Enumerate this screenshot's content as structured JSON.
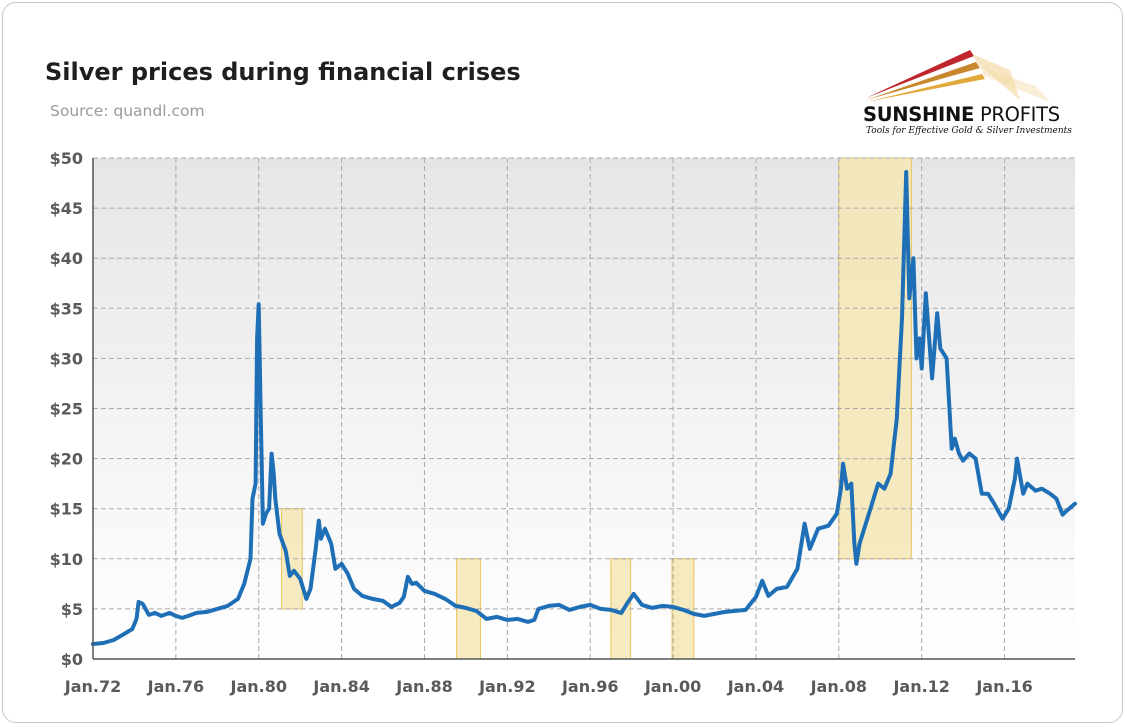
{
  "title": "Silver prices during financial crises",
  "subtitle": "Source: quandl.com",
  "logo": {
    "name_part1": "SUNSHINE",
    "name_part2": "PROFITS",
    "tagline": "Tools for Effective Gold & Silver Investments"
  },
  "colors": {
    "line": "#1f6fb7",
    "crisis_fill": "#f5e7b5",
    "crisis_border": "#e9c45c",
    "grid": "#aaaaaa"
  },
  "chart_data": {
    "type": "line",
    "title": "Silver prices during financial crises",
    "xlabel": "",
    "ylabel": "",
    "ylim": [
      0,
      50
    ],
    "xlim": [
      1972.0,
      2019.4
    ],
    "grid": true,
    "yticks": [
      {
        "value": 0,
        "label": "$0"
      },
      {
        "value": 5,
        "label": "$5"
      },
      {
        "value": 10,
        "label": "$10"
      },
      {
        "value": 15,
        "label": "$15"
      },
      {
        "value": 20,
        "label": "$20"
      },
      {
        "value": 25,
        "label": "$25"
      },
      {
        "value": 30,
        "label": "$30"
      },
      {
        "value": 35,
        "label": "$35"
      },
      {
        "value": 40,
        "label": "$40"
      },
      {
        "value": 45,
        "label": "$45"
      },
      {
        "value": 50,
        "label": "$50"
      }
    ],
    "xticks": [
      {
        "value": 1972,
        "label": "Jan.72"
      },
      {
        "value": 1976,
        "label": "Jan.76"
      },
      {
        "value": 1980,
        "label": "Jan.80"
      },
      {
        "value": 1984,
        "label": "Jan.84"
      },
      {
        "value": 1988,
        "label": "Jan.88"
      },
      {
        "value": 1992,
        "label": "Jan.92"
      },
      {
        "value": 1996,
        "label": "Jan.96"
      },
      {
        "value": 2000,
        "label": "Jan.00"
      },
      {
        "value": 2004,
        "label": "Jan.04"
      },
      {
        "value": 2008,
        "label": "Jan.08"
      },
      {
        "value": 2012,
        "label": "Jan.12"
      },
      {
        "value": 2016,
        "label": "Jan.16"
      }
    ],
    "crisis_periods": [
      {
        "start": 1981.1,
        "end": 1982.1,
        "low": 5,
        "high": 15
      },
      {
        "start": 1989.55,
        "end": 1990.7,
        "low": 0,
        "high": 10
      },
      {
        "start": 1997.0,
        "end": 1997.95,
        "low": 0,
        "high": 10
      },
      {
        "start": 1999.95,
        "end": 2001.0,
        "low": 0,
        "high": 10
      },
      {
        "start": 2008.0,
        "end": 2011.5,
        "low": 10,
        "high": 50
      }
    ],
    "series": [
      {
        "values": [
          [
            1972.0,
            1.5
          ],
          [
            1972.5,
            1.6
          ],
          [
            1973.0,
            1.9
          ],
          [
            1973.5,
            2.5
          ],
          [
            1973.9,
            3.0
          ],
          [
            1974.1,
            4.0
          ],
          [
            1974.2,
            5.7
          ],
          [
            1974.4,
            5.5
          ],
          [
            1974.7,
            4.4
          ],
          [
            1975.0,
            4.6
          ],
          [
            1975.3,
            4.3
          ],
          [
            1975.7,
            4.6
          ],
          [
            1976.0,
            4.3
          ],
          [
            1976.3,
            4.1
          ],
          [
            1976.6,
            4.3
          ],
          [
            1977.0,
            4.6
          ],
          [
            1977.5,
            4.7
          ],
          [
            1978.0,
            5.0
          ],
          [
            1978.5,
            5.3
          ],
          [
            1979.0,
            6.0
          ],
          [
            1979.3,
            7.5
          ],
          [
            1979.6,
            10.0
          ],
          [
            1979.7,
            16.0
          ],
          [
            1979.85,
            17.5
          ],
          [
            1979.92,
            32.0
          ],
          [
            1980.0,
            35.4
          ],
          [
            1980.1,
            24.0
          ],
          [
            1980.2,
            13.5
          ],
          [
            1980.35,
            14.5
          ],
          [
            1980.5,
            15.0
          ],
          [
            1980.62,
            20.5
          ],
          [
            1980.72,
            18.5
          ],
          [
            1980.8,
            16.0
          ],
          [
            1981.0,
            12.5
          ],
          [
            1981.3,
            10.8
          ],
          [
            1981.5,
            8.3
          ],
          [
            1981.7,
            8.8
          ],
          [
            1982.0,
            8.0
          ],
          [
            1982.3,
            6.0
          ],
          [
            1982.5,
            7.0
          ],
          [
            1982.75,
            11.0
          ],
          [
            1982.9,
            13.8
          ],
          [
            1983.0,
            12.0
          ],
          [
            1983.2,
            13.0
          ],
          [
            1983.5,
            11.5
          ],
          [
            1983.7,
            9.0
          ],
          [
            1984.0,
            9.5
          ],
          [
            1984.3,
            8.5
          ],
          [
            1984.6,
            7.0
          ],
          [
            1985.0,
            6.3
          ],
          [
            1985.5,
            6.0
          ],
          [
            1986.0,
            5.8
          ],
          [
            1986.4,
            5.2
          ],
          [
            1986.8,
            5.6
          ],
          [
            1987.0,
            6.2
          ],
          [
            1987.2,
            8.2
          ],
          [
            1987.4,
            7.5
          ],
          [
            1987.6,
            7.6
          ],
          [
            1988.0,
            6.8
          ],
          [
            1988.5,
            6.5
          ],
          [
            1989.0,
            6.0
          ],
          [
            1989.5,
            5.3
          ],
          [
            1990.0,
            5.1
          ],
          [
            1990.5,
            4.8
          ],
          [
            1991.0,
            4.0
          ],
          [
            1991.5,
            4.2
          ],
          [
            1992.0,
            3.9
          ],
          [
            1992.5,
            4.0
          ],
          [
            1993.0,
            3.7
          ],
          [
            1993.3,
            3.9
          ],
          [
            1993.5,
            5.0
          ],
          [
            1994.0,
            5.3
          ],
          [
            1994.5,
            5.4
          ],
          [
            1995.0,
            4.9
          ],
          [
            1995.5,
            5.2
          ],
          [
            1996.0,
            5.4
          ],
          [
            1996.5,
            5.0
          ],
          [
            1997.0,
            4.9
          ],
          [
            1997.5,
            4.6
          ],
          [
            1997.8,
            5.6
          ],
          [
            1998.1,
            6.5
          ],
          [
            1998.5,
            5.4
          ],
          [
            1999.0,
            5.1
          ],
          [
            1999.5,
            5.3
          ],
          [
            2000.0,
            5.2
          ],
          [
            2000.5,
            4.9
          ],
          [
            2001.0,
            4.5
          ],
          [
            2001.5,
            4.3
          ],
          [
            2002.0,
            4.5
          ],
          [
            2002.5,
            4.7
          ],
          [
            2003.0,
            4.8
          ],
          [
            2003.5,
            4.9
          ],
          [
            2004.0,
            6.2
          ],
          [
            2004.3,
            7.8
          ],
          [
            2004.6,
            6.3
          ],
          [
            2005.0,
            7.0
          ],
          [
            2005.5,
            7.2
          ],
          [
            2006.0,
            9.0
          ],
          [
            2006.35,
            13.5
          ],
          [
            2006.6,
            11.0
          ],
          [
            2007.0,
            13.0
          ],
          [
            2007.5,
            13.3
          ],
          [
            2007.9,
            14.5
          ],
          [
            2008.1,
            17.0
          ],
          [
            2008.2,
            19.5
          ],
          [
            2008.4,
            17.0
          ],
          [
            2008.6,
            17.5
          ],
          [
            2008.75,
            11.5
          ],
          [
            2008.85,
            9.5
          ],
          [
            2009.0,
            11.5
          ],
          [
            2009.3,
            13.5
          ],
          [
            2009.6,
            15.5
          ],
          [
            2009.9,
            17.5
          ],
          [
            2010.2,
            17.0
          ],
          [
            2010.5,
            18.5
          ],
          [
            2010.8,
            24.0
          ],
          [
            2010.95,
            30.0
          ],
          [
            2011.05,
            34.0
          ],
          [
            2011.25,
            48.6
          ],
          [
            2011.4,
            36.0
          ],
          [
            2011.6,
            40.0
          ],
          [
            2011.75,
            30.0
          ],
          [
            2011.9,
            32.0
          ],
          [
            2012.0,
            29.0
          ],
          [
            2012.2,
            36.5
          ],
          [
            2012.5,
            28.0
          ],
          [
            2012.75,
            34.5
          ],
          [
            2012.9,
            31.0
          ],
          [
            2013.2,
            30.0
          ],
          [
            2013.45,
            21.0
          ],
          [
            2013.6,
            22.0
          ],
          [
            2013.8,
            20.5
          ],
          [
            2014.0,
            19.8
          ],
          [
            2014.3,
            20.5
          ],
          [
            2014.6,
            20.0
          ],
          [
            2014.9,
            16.5
          ],
          [
            2015.2,
            16.5
          ],
          [
            2015.5,
            15.5
          ],
          [
            2015.9,
            14.0
          ],
          [
            2016.2,
            15.0
          ],
          [
            2016.5,
            18.0
          ],
          [
            2016.6,
            20.0
          ],
          [
            2016.9,
            16.5
          ],
          [
            2017.1,
            17.5
          ],
          [
            2017.5,
            16.8
          ],
          [
            2017.8,
            17.0
          ],
          [
            2018.2,
            16.5
          ],
          [
            2018.5,
            16.0
          ],
          [
            2018.8,
            14.4
          ],
          [
            2019.0,
            14.8
          ],
          [
            2019.4,
            15.5
          ]
        ]
      }
    ]
  }
}
